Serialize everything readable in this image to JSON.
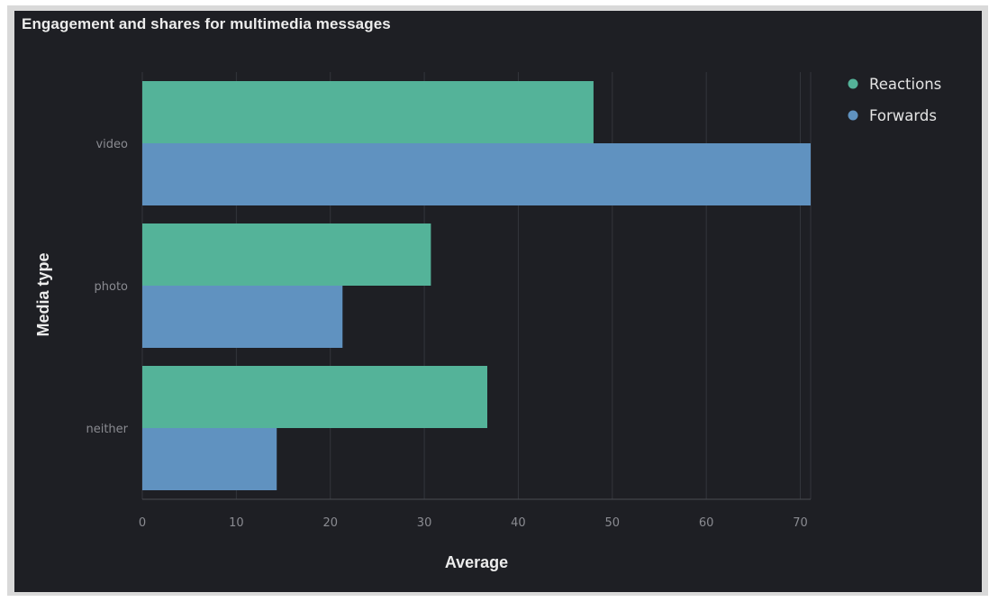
{
  "panel": {
    "title": "Engagement and shares for multimedia messages"
  },
  "chart_data": {
    "type": "bar",
    "orientation": "horizontal",
    "categories": [
      "video",
      "photo",
      "neither"
    ],
    "series": [
      {
        "name": "Reactions",
        "color": "#54b399",
        "values": [
          48,
          30.7,
          36.7
        ]
      },
      {
        "name": "Forwards",
        "color": "#6092c0",
        "values": [
          71.1,
          21.3,
          14.3
        ]
      }
    ],
    "title": "Engagement and shares for multimedia messages",
    "xlabel": "Average",
    "ylabel": "Media type",
    "xlim": [
      0,
      71.1
    ],
    "xticks": [
      0,
      10,
      20,
      30,
      40,
      50,
      60,
      70
    ],
    "grid": true,
    "legend_position": "top-right"
  },
  "theme": {
    "background": "#1e1f24",
    "grid": "#34363c",
    "frame": "#d9d9d9"
  }
}
